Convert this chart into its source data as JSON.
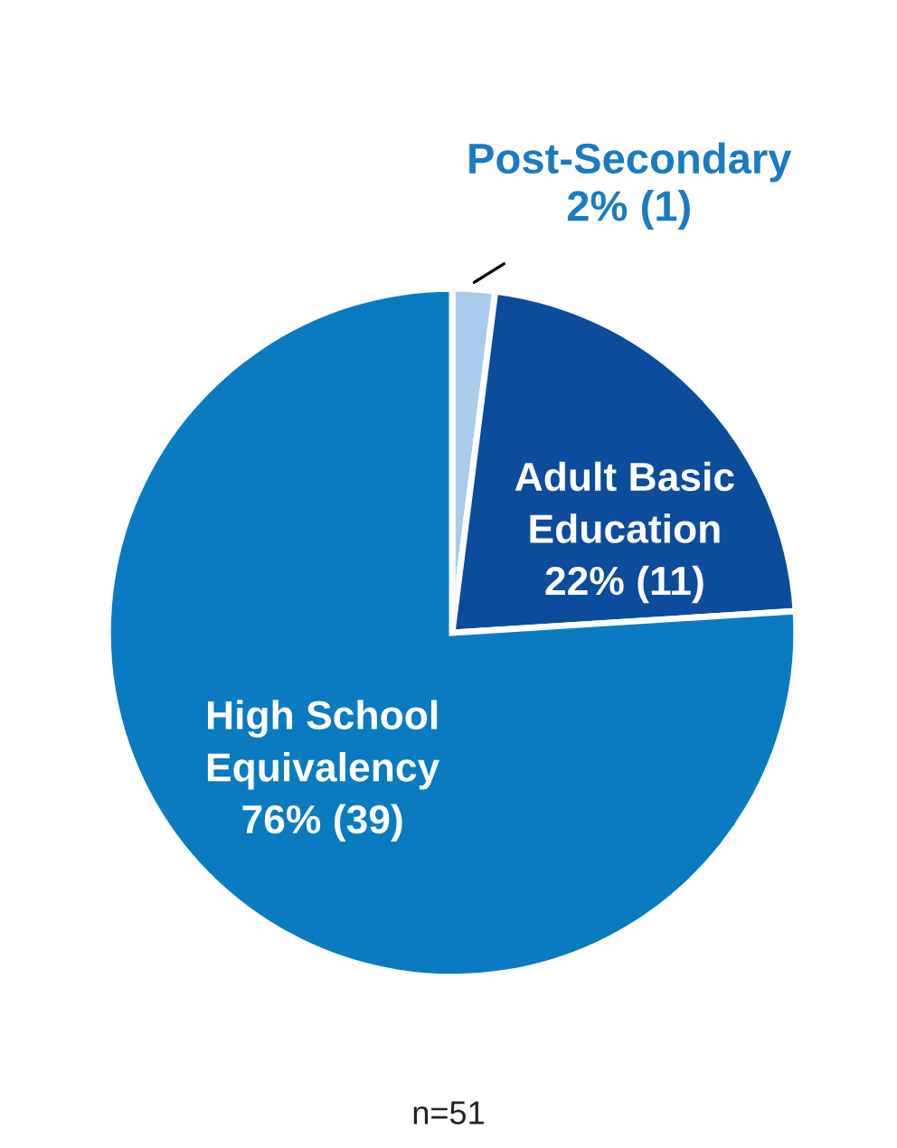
{
  "chart_data": {
    "type": "pie",
    "categories": [
      "Post-Secondary",
      "Adult Basic\nEducation",
      "High School\nEquivalency"
    ],
    "values": [
      2,
      22,
      76
    ],
    "colors": [
      "#a8cbeb",
      "#0b4c9c",
      "#0a7bc1"
    ],
    "value_labels": [
      "2% (1)",
      "22% (11)",
      "76% (39)"
    ],
    "annotations": [
      "n=51"
    ]
  }
}
